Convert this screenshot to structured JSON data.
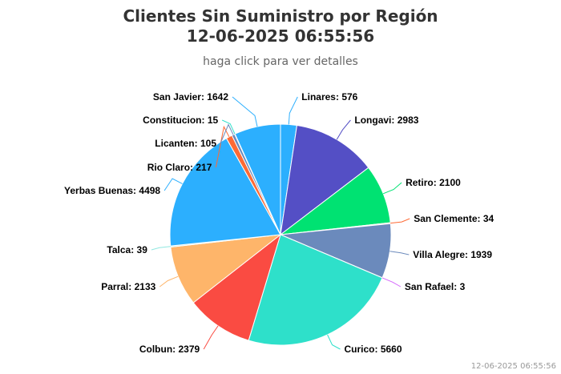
{
  "chart_data": {
    "type": "pie",
    "title_line1": "Clientes Sin Suministro por Región",
    "title_line2": "12-06-2025 06:55:56",
    "subtitle": "haga click para ver detalles",
    "credit": "12-06-2025 06:55:56",
    "slices": [
      {
        "name": "Linares",
        "value": 576,
        "color": "#2caffe"
      },
      {
        "name": "Longavi",
        "value": 2983,
        "color": "#544fc5"
      },
      {
        "name": "Retiro",
        "value": 2100,
        "color": "#00e272"
      },
      {
        "name": "San Clemente",
        "value": 34,
        "color": "#fe6a35"
      },
      {
        "name": "Villa Alegre",
        "value": 1939,
        "color": "#6b8abc"
      },
      {
        "name": "San Rafael",
        "value": 3,
        "color": "#d568fb"
      },
      {
        "name": "Curico",
        "value": 5660,
        "color": "#2ee0ca"
      },
      {
        "name": "Colbun",
        "value": 2379,
        "color": "#fa4b42"
      },
      {
        "name": "Parral",
        "value": 2133,
        "color": "#feb56a"
      },
      {
        "name": "Talca",
        "value": 39,
        "color": "#91e8e1"
      },
      {
        "name": "Yerbas Buenas",
        "value": 4498,
        "color": "#2caffe"
      },
      {
        "name": "Rio Claro",
        "value": 217,
        "color": "#fe6a35"
      },
      {
        "name": "Licanten",
        "value": 105,
        "color": "#6b8abc"
      },
      {
        "name": "Constitucion",
        "value": 15,
        "color": "#2ee0ca"
      },
      {
        "name": "San Javier",
        "value": 1642,
        "color": "#2caffe"
      }
    ]
  }
}
